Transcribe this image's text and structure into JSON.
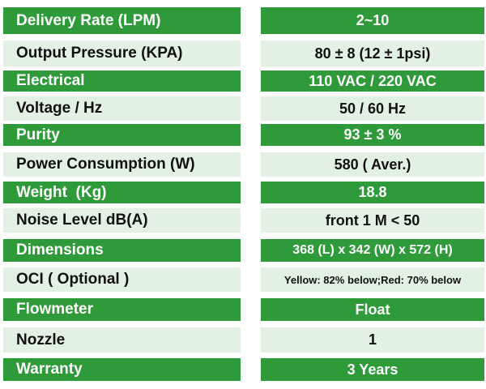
{
  "specs": [
    {
      "label": "Delivery Rate (LPM)",
      "value": "2~10"
    },
    {
      "label": "Output Pressure (KPA)",
      "value": "80 ± 8 (12 ± 1psi)"
    },
    {
      "label": "Electrical",
      "value": "110 VAC / 220 VAC"
    },
    {
      "label": "Voltage / Hz",
      "value": "50 / 60 Hz"
    },
    {
      "label": "Purity",
      "value": "93 ± 3 %"
    },
    {
      "label": "Power Consumption (W)",
      "value": "580 ( Aver.)"
    },
    {
      "label": "Weight  (Kg)",
      "value": "18.8"
    },
    {
      "label": "Noise Level dB(A)",
      "value": "front 1 M < 50"
    },
    {
      "label": "Dimensions",
      "value": "368 (L) x 342 (W) x 572 (H)"
    },
    {
      "label": "OCI ( Optional )",
      "value": "Yellow: 82% below;Red: 70% below"
    },
    {
      "label": "Flowmeter",
      "value": "Float"
    },
    {
      "label": "Nozzle",
      "value": "1"
    },
    {
      "label": "Warranty",
      "value": "3 Years"
    }
  ],
  "colors": {
    "header_green": "#2f9a3a",
    "row_light": "#e3f1e5",
    "text_dark": "#111111",
    "text_light": "#ffffff"
  }
}
